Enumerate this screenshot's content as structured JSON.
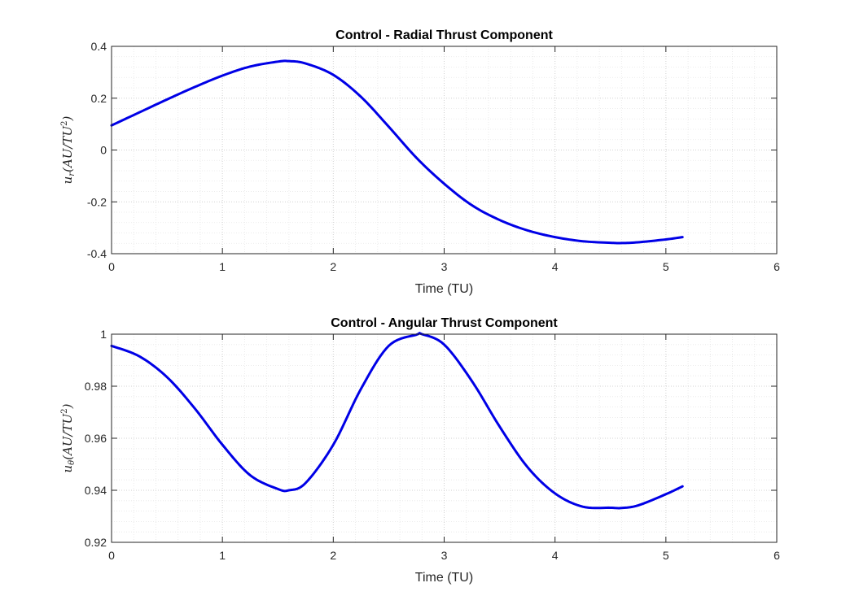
{
  "chart_data": [
    {
      "type": "line",
      "title": "Control - Radial Thrust Component",
      "xlabel": "Time (TU)",
      "ylabel": {
        "base": "u",
        "sub": "r",
        "open": "(AU/TU",
        "sup": "2",
        "close": ")"
      },
      "xlim": [
        0,
        6
      ],
      "ylim": [
        -0.4,
        0.4
      ],
      "xticks": [
        "0",
        "1",
        "2",
        "3",
        "4",
        "5",
        "6"
      ],
      "yticks": [
        "-0.4",
        "-0.2",
        "0",
        "0.2",
        "0.4"
      ],
      "grid": "on (major and minor, dotted)",
      "color": "#0000e6",
      "series": [
        {
          "x": [
            0,
            0.25,
            0.5,
            0.75,
            1.0,
            1.25,
            1.5,
            1.6,
            1.75,
            2.0,
            2.25,
            2.5,
            2.75,
            3.0,
            3.25,
            3.5,
            3.75,
            4.0,
            4.25,
            4.5,
            4.6,
            4.75,
            5.0,
            5.15
          ],
          "y": [
            0.095,
            0.145,
            0.195,
            0.243,
            0.287,
            0.322,
            0.341,
            0.343,
            0.334,
            0.29,
            0.205,
            0.09,
            -0.03,
            -0.13,
            -0.213,
            -0.27,
            -0.31,
            -0.336,
            -0.352,
            -0.358,
            -0.359,
            -0.356,
            -0.345,
            -0.336
          ]
        }
      ]
    },
    {
      "type": "line",
      "title": "Control - Angular Thrust Component",
      "xlabel": "Time (TU)",
      "ylabel": {
        "base": "u",
        "sub": "θ",
        "open": "(AU/TU",
        "sup": "2",
        "close": ")"
      },
      "xlim": [
        0,
        6
      ],
      "ylim": [
        0.92,
        1.0
      ],
      "xticks": [
        "0",
        "1",
        "2",
        "3",
        "4",
        "5",
        "6"
      ],
      "yticks": [
        "0.92",
        "0.94",
        "0.96",
        "0.98",
        "1"
      ],
      "grid": "on (major and minor, dotted)",
      "color": "#0000e6",
      "series": [
        {
          "x": [
            0,
            0.25,
            0.5,
            0.75,
            1.0,
            1.25,
            1.5,
            1.6,
            1.75,
            2.0,
            2.25,
            2.5,
            2.75,
            2.8,
            3.0,
            3.25,
            3.5,
            3.75,
            4.0,
            4.25,
            4.5,
            4.6,
            4.75,
            5.0,
            5.15
          ],
          "y": [
            0.9955,
            0.9915,
            0.9835,
            0.9715,
            0.9575,
            0.9458,
            0.9405,
            0.94,
            0.9428,
            0.9575,
            0.979,
            0.9955,
            0.9998,
            1.0,
            0.996,
            0.982,
            0.9645,
            0.949,
            0.9388,
            0.9337,
            0.9333,
            0.9332,
            0.9342,
            0.9385,
            0.9415
          ]
        }
      ]
    }
  ]
}
